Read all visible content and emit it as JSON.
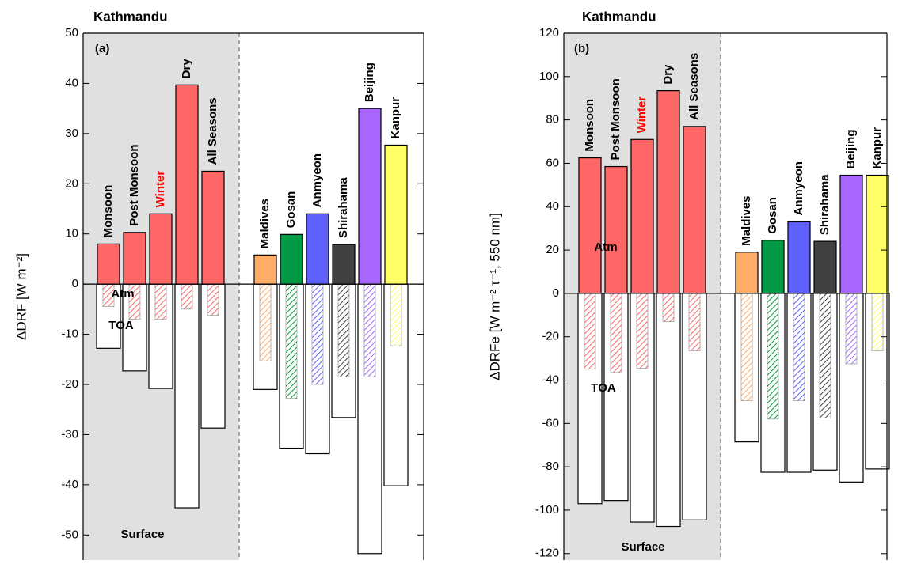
{
  "chart_data": [
    {
      "type": "bar",
      "title": "Kathmandu",
      "panel_label": "(a)",
      "ylabel": "ΔDRF [W m⁻²]",
      "categories": [
        "Monsoon",
        "Post Monsoon",
        "Winter",
        "Dry",
        "All Seasons",
        "Maldives",
        "Gosan",
        "Anmyeon",
        "Shirahama",
        "Beijing",
        "Kanpur"
      ],
      "colors": [
        "#ff6666",
        "#ff6666",
        "#ff6666",
        "#ff6666",
        "#ff6666",
        "#ffad66",
        "#009944",
        "#6060ff",
        "#404040",
        "#a866ff",
        "#ffff66"
      ],
      "highlight_index": 2,
      "highlight_color": "#ff0000",
      "shade": {
        "count": 5,
        "color": "#e0e0e0"
      },
      "series": [
        {
          "name": "Atm",
          "values": [
            8,
            10.3,
            14,
            39.7,
            22.5,
            5.8,
            9.9,
            14,
            7.9,
            35,
            27.7
          ]
        },
        {
          "name": "TOA",
          "values": [
            -4.5,
            -7,
            -7,
            -5,
            -6.2,
            -15.3,
            -22.8,
            -20,
            -18.5,
            -18.5,
            -12.3
          ]
        },
        {
          "name": "Surface",
          "values": [
            -12.8,
            -17.3,
            -20.8,
            -44.6,
            -28.7,
            -21,
            -32.7,
            -33.8,
            -26.6,
            -53.7,
            -40.2
          ]
        }
      ],
      "ylim": [
        -55,
        50
      ],
      "yticks": [
        -50,
        -40,
        -30,
        -20,
        -10,
        0,
        10,
        20,
        30,
        40,
        50
      ]
    },
    {
      "type": "bar",
      "title": "Kathmandu",
      "panel_label": "(b)",
      "ylabel": "ΔDRFe [W m⁻² τ⁻¹, 550 nm]",
      "categories": [
        "Monsoon",
        "Post Monsoon",
        "Winter",
        "Dry",
        "All Seasons",
        "Maldives",
        "Gosan",
        "Anmyeon",
        "Shirahama",
        "Beijing",
        "Kanpur"
      ],
      "colors": [
        "#ff6666",
        "#ff6666",
        "#ff6666",
        "#ff6666",
        "#ff6666",
        "#ffad66",
        "#009944",
        "#6060ff",
        "#404040",
        "#a866ff",
        "#ffff66"
      ],
      "highlight_index": 2,
      "highlight_color": "#ff0000",
      "shade": {
        "count": 5,
        "color": "#e0e0e0"
      },
      "series": [
        {
          "name": "Atm",
          "values": [
            62.5,
            58.5,
            71,
            93.5,
            77,
            19,
            24.5,
            33,
            24,
            54.5,
            54.5
          ]
        },
        {
          "name": "TOA",
          "values": [
            -35,
            -36.5,
            -34.5,
            -13,
            -26.5,
            -49.5,
            -58,
            -49.5,
            -57.5,
            -32.5,
            -26.5
          ]
        },
        {
          "name": "Surface",
          "values": [
            -97,
            -95.5,
            -105.5,
            -107.5,
            -104.5,
            -68.5,
            -82.5,
            -82.5,
            -81.5,
            -87,
            -81
          ]
        }
      ],
      "ylim": [
        -123,
        120
      ],
      "yticks": [
        -120,
        -100,
        -80,
        -60,
        -40,
        -20,
        0,
        20,
        40,
        60,
        80,
        100,
        120
      ]
    }
  ]
}
